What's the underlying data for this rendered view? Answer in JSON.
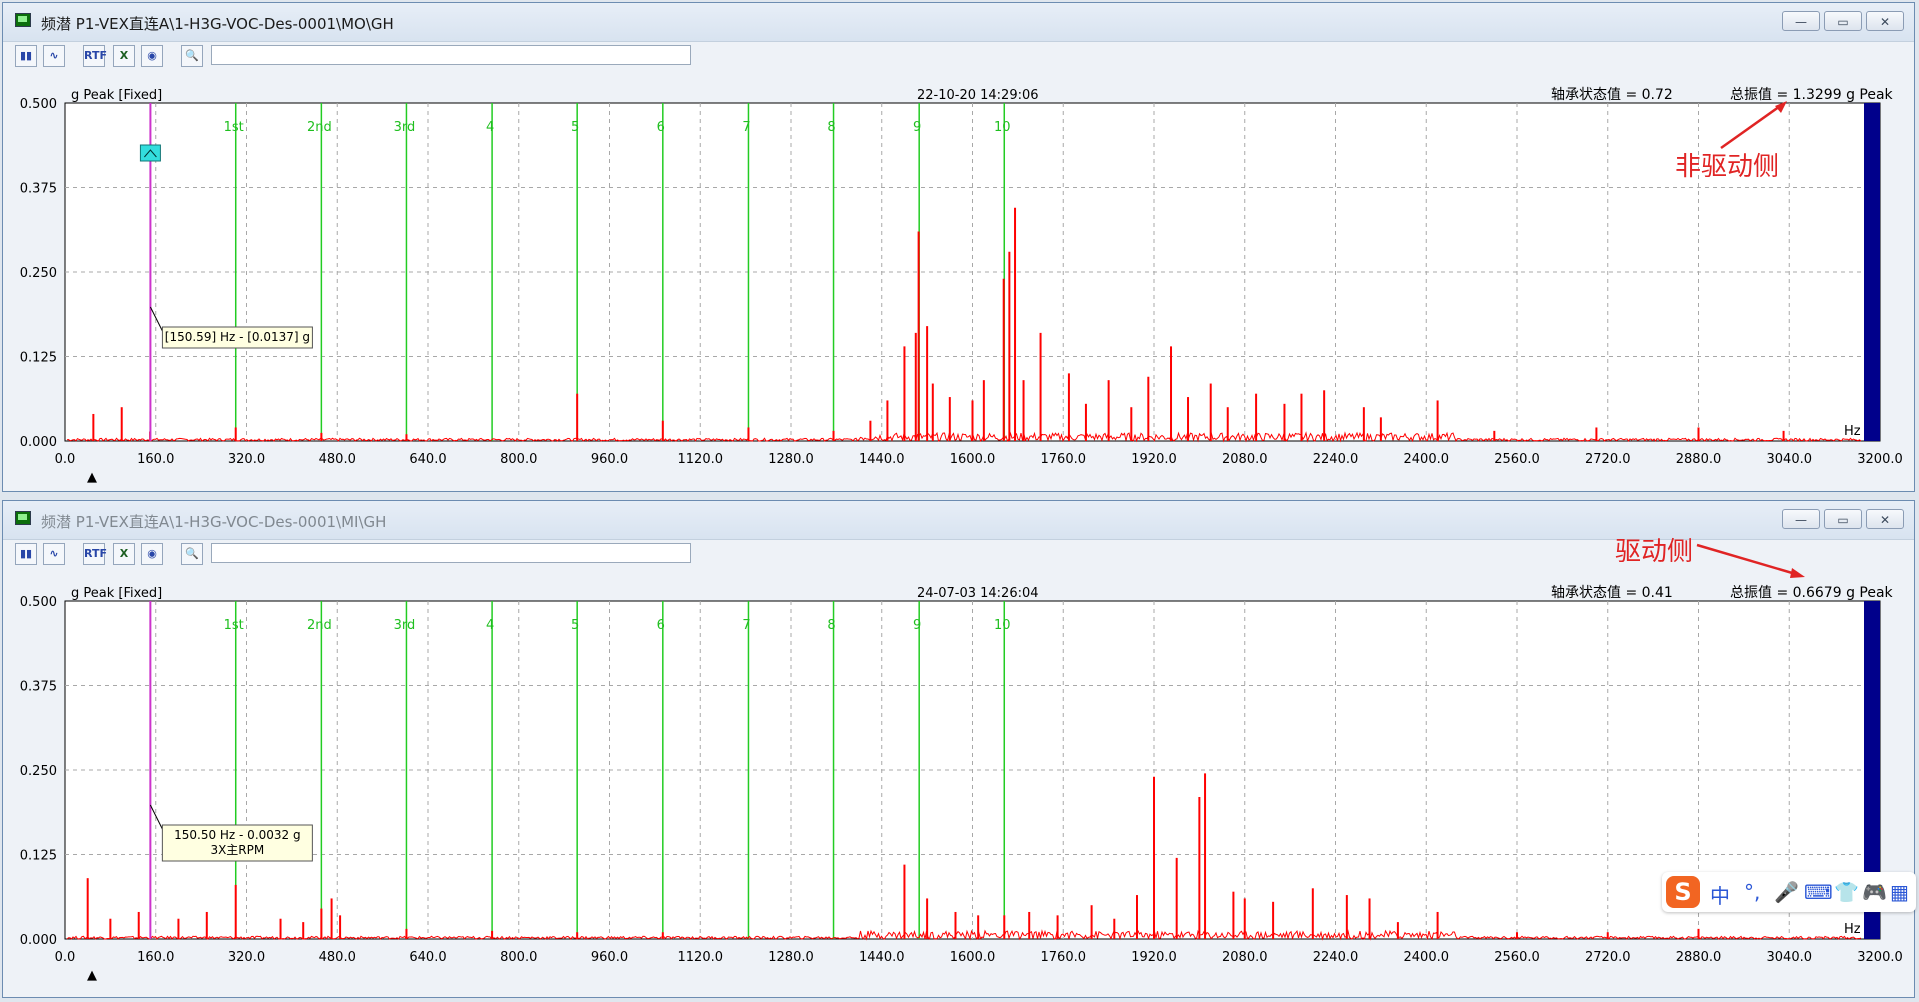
{
  "windows": [
    {
      "title": "频潜 P1-VEX直连A\\1-H3G-VOC-Des-0001\\MO\\GH",
      "active": true,
      "controls": {
        "minimize": "—",
        "restore": "▭",
        "close": "✕"
      },
      "chart": {
        "unit_label": "g  Peak  [Fixed]",
        "timestamp": "22-10-20 14:29:06",
        "status": "轴承状态值 = 0.72",
        "overall": "总振值 = 1.3299 g Peak",
        "hz_label": "Hz",
        "tooltip": [
          "[150.59] Hz - [0.0137] g"
        ],
        "annotation": "非驱动侧"
      }
    },
    {
      "title": "频潜 P1-VEX直连A\\1-H3G-VOC-Des-0001\\MI\\GH",
      "active": false,
      "controls": {
        "minimize": "—",
        "restore": "▭",
        "close": "✕"
      },
      "chart": {
        "unit_label": "g  Peak  [Fixed]",
        "timestamp": "24-07-03 14:26:04",
        "status": "轴承状态值 = 0.41",
        "overall": "总振值 = 0.6679 g Peak",
        "hz_label": "Hz",
        "tooltip": [
          "150.50 Hz - 0.0032 g",
          "3X主RPM"
        ],
        "annotation": "驱动侧"
      }
    }
  ],
  "toolbar": {
    "buttons": [
      "spectrum-icon",
      "waveform-icon",
      "rtf-icon",
      "excel-icon",
      "sound-icon",
      "zoom-icon"
    ],
    "labels": {
      "rtf": "RTF",
      "excel": "X",
      "sound": "◉",
      "spectrum": "▮▮",
      "waveform": "∿",
      "zoom": "🔍"
    }
  },
  "colors": {
    "spectrum": "#ff0000",
    "harmonic": "#22cc22",
    "cursor": "#cc33cc",
    "axis_bar": "#00008b",
    "annotation": "#e02424"
  },
  "chart_data": [
    {
      "type": "line",
      "xlabel": "Hz",
      "ylabel": "g Peak",
      "xlim": [
        0,
        3200
      ],
      "ylim": [
        0,
        0.5
      ],
      "x_ticks": [
        "0.0",
        "160.0",
        "320.0",
        "480.0",
        "640.0",
        "800.0",
        "960.0",
        "1120.0",
        "1280.0",
        "1440.0",
        "1600.0",
        "1760.0",
        "1920.0",
        "2080.0",
        "2240.0",
        "2400.0",
        "2560.0",
        "2720.0",
        "2880.0",
        "3040.0",
        "3200.0"
      ],
      "y_ticks": [
        "0.000",
        "0.125",
        "0.250",
        "0.375",
        "0.500"
      ],
      "harmonics": [
        {
          "label": "1st",
          "x": 301
        },
        {
          "label": "2nd",
          "x": 452
        },
        {
          "label": "3rd",
          "x": 602
        },
        {
          "label": "4",
          "x": 753
        },
        {
          "label": "5",
          "x": 903
        },
        {
          "label": "6",
          "x": 1054
        },
        {
          "label": "7",
          "x": 1205
        },
        {
          "label": "8",
          "x": 1355
        },
        {
          "label": "9",
          "x": 1506
        },
        {
          "label": "10",
          "x": 1656
        }
      ],
      "cursor_x": 150.59,
      "peaks": [
        [
          50,
          0.04
        ],
        [
          100,
          0.05
        ],
        [
          150,
          0.014
        ],
        [
          301,
          0.02
        ],
        [
          452,
          0.012
        ],
        [
          602,
          0.01
        ],
        [
          903,
          0.07
        ],
        [
          1054,
          0.03
        ],
        [
          1205,
          0.02
        ],
        [
          1355,
          0.015
        ],
        [
          1420,
          0.03
        ],
        [
          1450,
          0.06
        ],
        [
          1480,
          0.14
        ],
        [
          1500,
          0.16
        ],
        [
          1505,
          0.31
        ],
        [
          1520,
          0.17
        ],
        [
          1530,
          0.085
        ],
        [
          1560,
          0.065
        ],
        [
          1600,
          0.06
        ],
        [
          1620,
          0.09
        ],
        [
          1655,
          0.24
        ],
        [
          1665,
          0.28
        ],
        [
          1675,
          0.345
        ],
        [
          1690,
          0.09
        ],
        [
          1720,
          0.16
        ],
        [
          1770,
          0.1
        ],
        [
          1800,
          0.055
        ],
        [
          1840,
          0.09
        ],
        [
          1880,
          0.05
        ],
        [
          1910,
          0.095
        ],
        [
          1950,
          0.14
        ],
        [
          1980,
          0.065
        ],
        [
          2020,
          0.085
        ],
        [
          2050,
          0.05
        ],
        [
          2100,
          0.07
        ],
        [
          2150,
          0.055
        ],
        [
          2180,
          0.07
        ],
        [
          2220,
          0.075
        ],
        [
          2290,
          0.05
        ],
        [
          2320,
          0.035
        ],
        [
          2420,
          0.06
        ],
        [
          2520,
          0.015
        ],
        [
          2700,
          0.02
        ],
        [
          2880,
          0.02
        ],
        [
          3030,
          0.015
        ]
      ]
    },
    {
      "type": "line",
      "xlabel": "Hz",
      "ylabel": "g Peak",
      "xlim": [
        0,
        3200
      ],
      "ylim": [
        0,
        0.5
      ],
      "x_ticks": [
        "0.0",
        "160.0",
        "320.0",
        "480.0",
        "640.0",
        "800.0",
        "960.0",
        "1120.0",
        "1280.0",
        "1440.0",
        "1600.0",
        "1760.0",
        "1920.0",
        "2080.0",
        "2240.0",
        "2400.0",
        "2560.0",
        "2720.0",
        "2880.0",
        "3040.0",
        "3200.0"
      ],
      "y_ticks": [
        "0.000",
        "0.125",
        "0.250",
        "0.375",
        "0.500"
      ],
      "harmonics": [
        {
          "label": "1st",
          "x": 301
        },
        {
          "label": "2nd",
          "x": 452
        },
        {
          "label": "3rd",
          "x": 602
        },
        {
          "label": "4",
          "x": 753
        },
        {
          "label": "5",
          "x": 903
        },
        {
          "label": "6",
          "x": 1054
        },
        {
          "label": "7",
          "x": 1205
        },
        {
          "label": "8",
          "x": 1355
        },
        {
          "label": "9",
          "x": 1506
        },
        {
          "label": "10",
          "x": 1656
        }
      ],
      "cursor_x": 150.5,
      "peaks": [
        [
          40,
          0.09
        ],
        [
          80,
          0.03
        ],
        [
          130,
          0.04
        ],
        [
          200,
          0.03
        ],
        [
          250,
          0.04
        ],
        [
          301,
          0.08
        ],
        [
          380,
          0.03
        ],
        [
          420,
          0.025
        ],
        [
          452,
          0.045
        ],
        [
          470,
          0.06
        ],
        [
          485,
          0.035
        ],
        [
          602,
          0.015
        ],
        [
          753,
          0.012
        ],
        [
          903,
          0.01
        ],
        [
          1054,
          0.01
        ],
        [
          1480,
          0.11
        ],
        [
          1520,
          0.06
        ],
        [
          1570,
          0.04
        ],
        [
          1610,
          0.035
        ],
        [
          1656,
          0.035
        ],
        [
          1700,
          0.04
        ],
        [
          1750,
          0.035
        ],
        [
          1810,
          0.05
        ],
        [
          1850,
          0.03
        ],
        [
          1890,
          0.065
        ],
        [
          1920,
          0.24
        ],
        [
          1960,
          0.12
        ],
        [
          2000,
          0.21
        ],
        [
          2010,
          0.245
        ],
        [
          2060,
          0.07
        ],
        [
          2080,
          0.06
        ],
        [
          2130,
          0.055
        ],
        [
          2200,
          0.075
        ],
        [
          2260,
          0.065
        ],
        [
          2300,
          0.06
        ],
        [
          2350,
          0.025
        ],
        [
          2420,
          0.04
        ],
        [
          2560,
          0.01
        ],
        [
          2720,
          0.01
        ],
        [
          2880,
          0.015
        ]
      ]
    }
  ]
}
